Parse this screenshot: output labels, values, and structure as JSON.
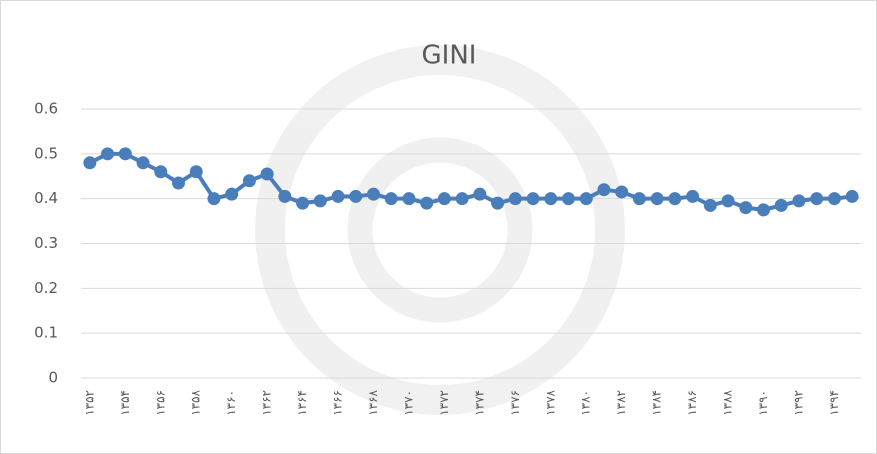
{
  "chart_data": {
    "type": "line",
    "title": "GINI",
    "categories": [
      "۱۳۵۲",
      null,
      "۱۳۵۴",
      null,
      "۱۳۵۶",
      null,
      "۱۳۵۸",
      null,
      "۱۳۶۰",
      null,
      "۱۳۶۲",
      null,
      "۱۳۶۴",
      null,
      "۱۳۶۶",
      null,
      "۱۳۶۸",
      null,
      "۱۳۷۰",
      null,
      "۱۳۷۲",
      null,
      "۱۳۷۴",
      null,
      "۱۳۷۶",
      null,
      "۱۳۷۸",
      null,
      "۱۳۸۰",
      null,
      "۱۳۸۲",
      null,
      "۱۳۸۴",
      null,
      "۱۳۸۶",
      null,
      "۱۳۸۸",
      null,
      "۱۳۹۰",
      null,
      "۱۳۹۲",
      null,
      "۱۳۹۴",
      null
    ],
    "values": [
      0.48,
      0.5,
      0.5,
      0.48,
      0.46,
      0.435,
      0.46,
      0.4,
      0.41,
      0.44,
      0.455,
      0.405,
      0.39,
      0.395,
      0.405,
      0.405,
      0.41,
      0.4,
      0.4,
      0.39,
      0.4,
      0.4,
      0.41,
      0.39,
      0.4,
      0.4,
      0.4,
      0.4,
      0.4,
      0.42,
      0.415,
      0.4,
      0.4,
      0.4,
      0.405,
      0.385,
      0.395,
      0.38,
      0.375,
      0.385,
      0.395,
      0.4,
      0.4,
      0.405
    ],
    "color": "#4a7ebb",
    "ylim": [
      0,
      0.6
    ],
    "yticks": [
      0,
      0.1,
      0.2,
      0.3,
      0.4,
      0.5,
      0.6
    ],
    "grid": true
  }
}
